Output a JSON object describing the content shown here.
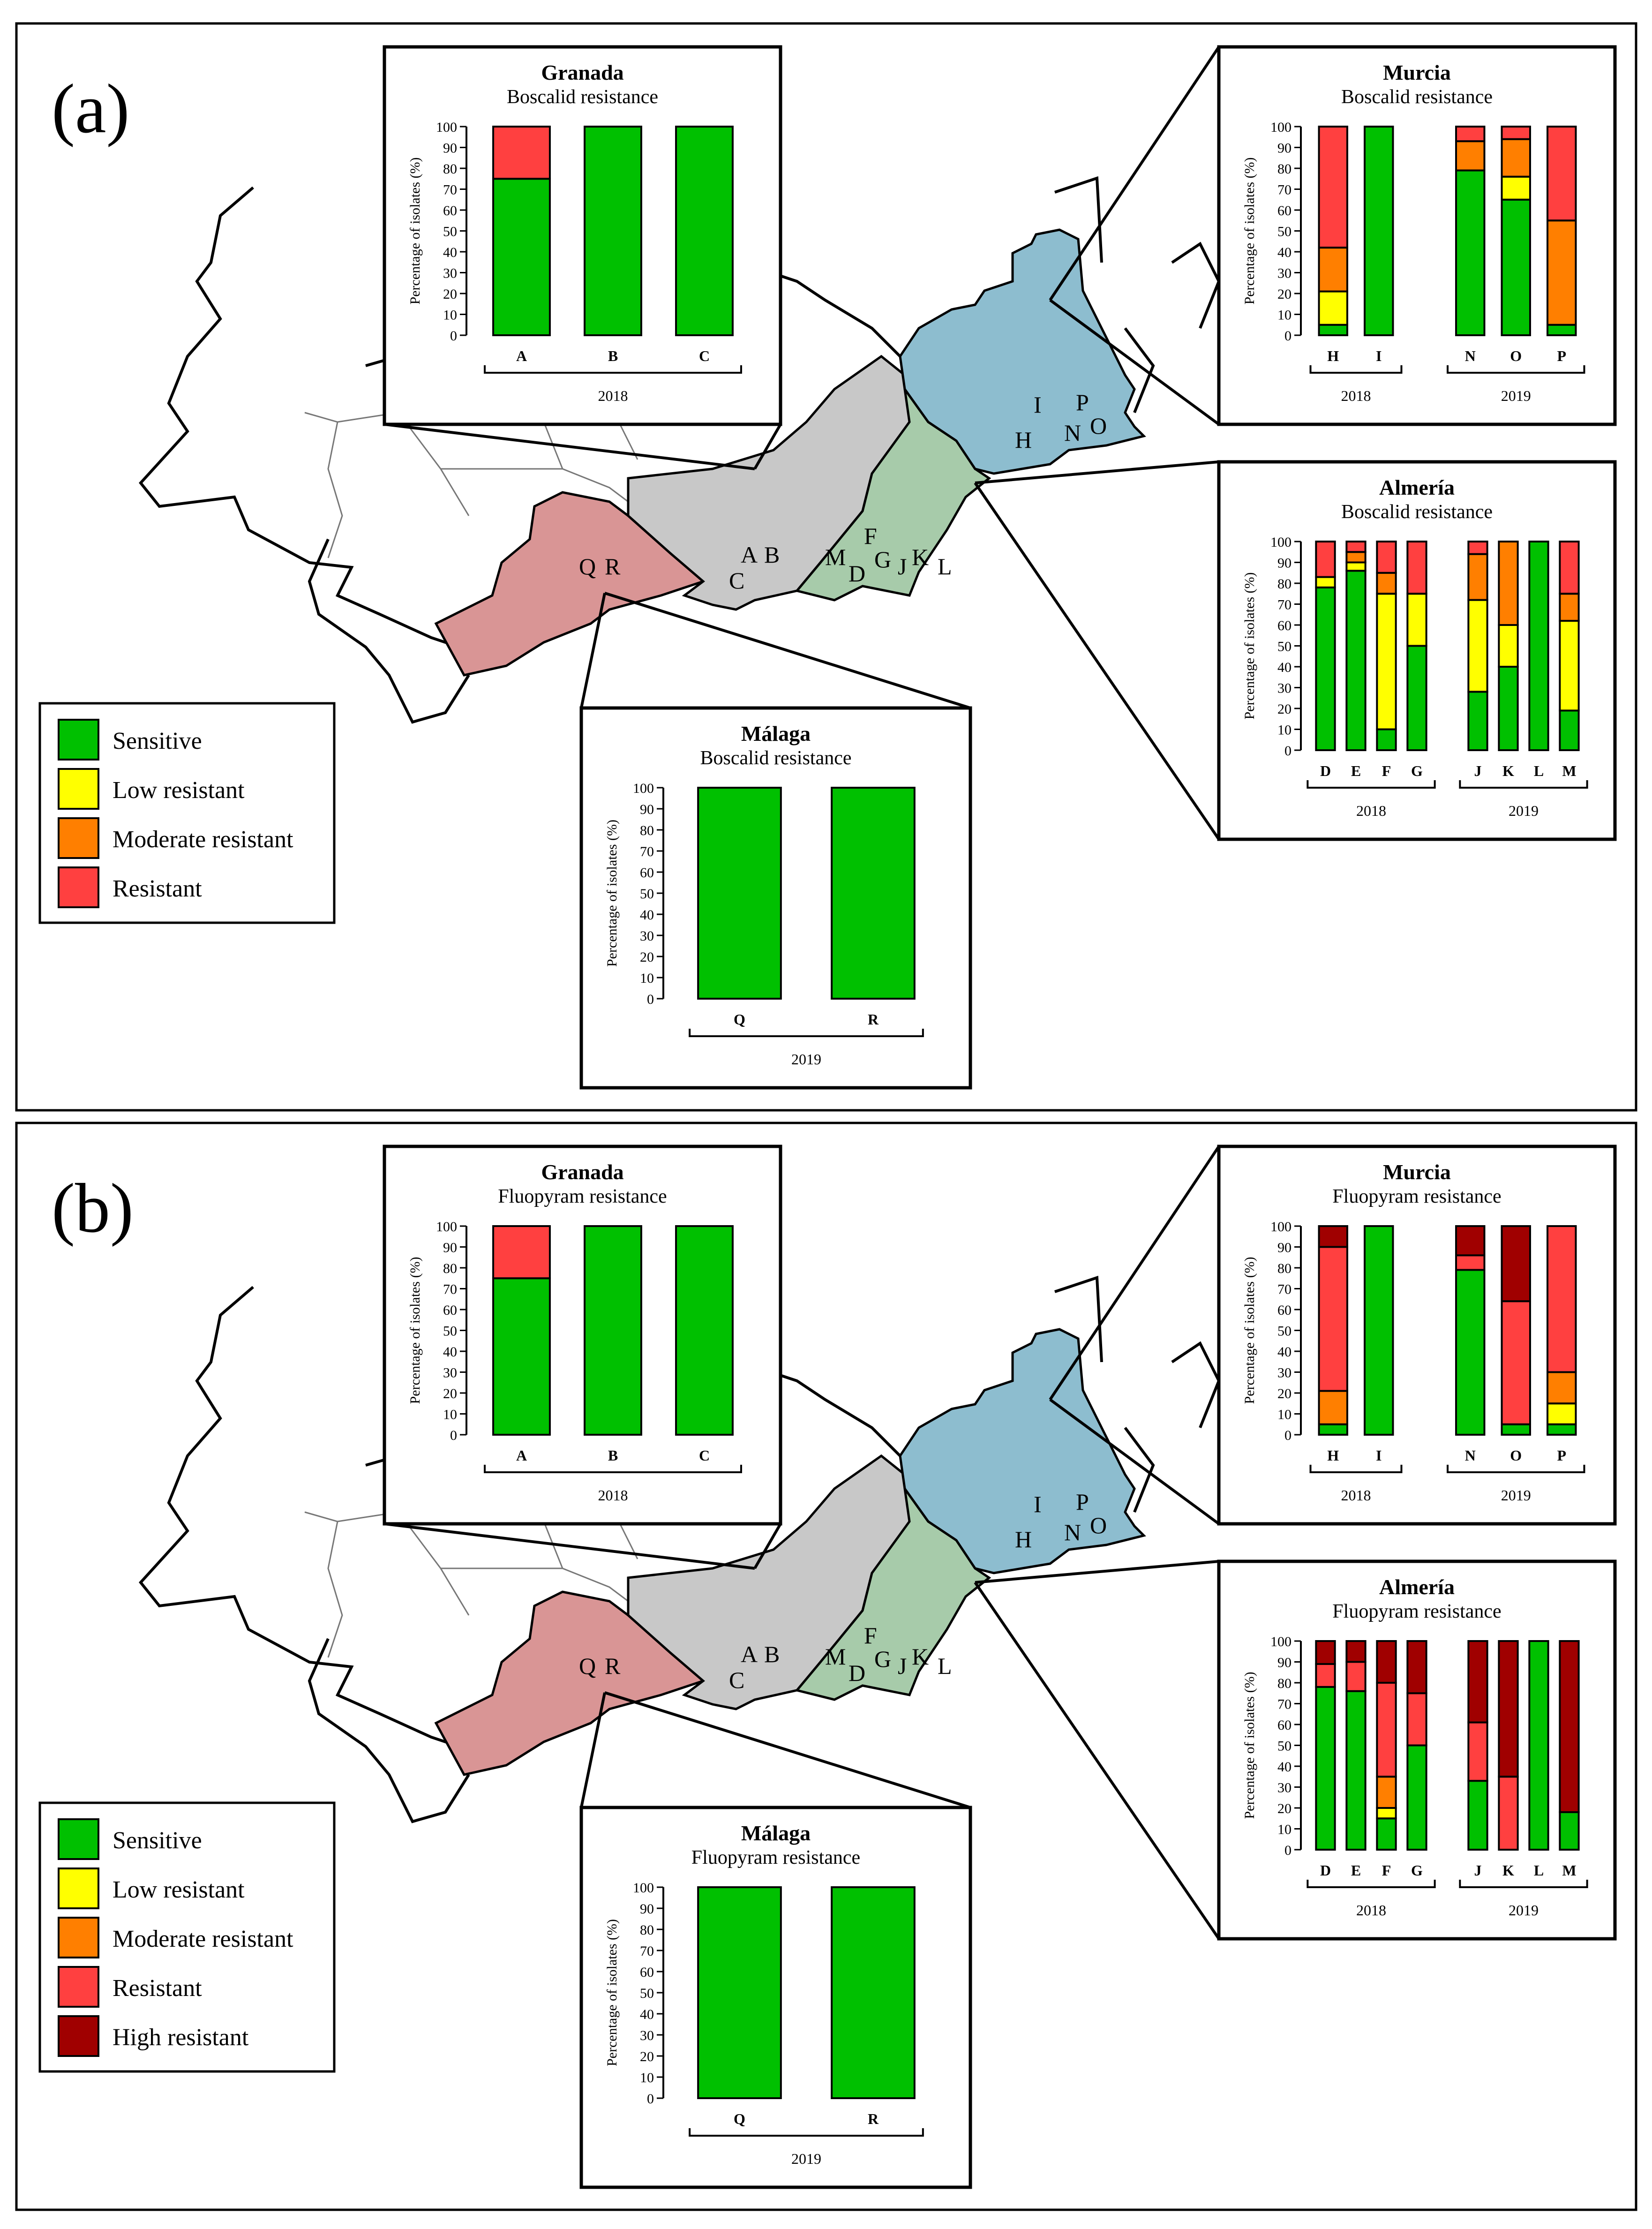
{
  "colors": {
    "sensitive": "#00C000",
    "low": "#FFFF00",
    "moderate": "#FF7F00",
    "resistant": "#FF4040",
    "high": "#A00000",
    "murcia_region": "#8DBDCF",
    "almeria_region": "#A7CBAA",
    "granada_region": "#C8C8C8",
    "malaga_region": "#D99595"
  },
  "legend": {
    "sensitive": "Sensitive",
    "low": "Low resistant",
    "moderate": "Moderate resistant",
    "resistant": "Resistant",
    "high": "High resistant"
  },
  "panels": [
    {
      "label": "(a)",
      "map_labels": {
        "granada": [
          "A",
          "B",
          "C"
        ],
        "malaga": [
          "Q",
          "R"
        ],
        "almeria": [
          "M",
          "F",
          "D",
          "G",
          "J",
          "K",
          "L"
        ],
        "murcia": [
          "I",
          "P",
          "H",
          "N",
          "O"
        ]
      },
      "legend_keys": [
        "sensitive",
        "low",
        "moderate",
        "resistant"
      ]
    },
    {
      "label": "(b)",
      "map_labels": {
        "granada": [
          "A",
          "B",
          "C"
        ],
        "malaga": [
          "Q",
          "R"
        ],
        "almeria": [
          "M",
          "F",
          "D",
          "G",
          "J",
          "K",
          "L"
        ],
        "murcia": [
          "I",
          "P",
          "H",
          "N",
          "O"
        ]
      },
      "legend_keys": [
        "sensitive",
        "low",
        "moderate",
        "resistant",
        "high"
      ]
    }
  ],
  "chart_data": [
    {
      "id": "a-granada",
      "type": "bar",
      "stacked": true,
      "title": "Granada",
      "subtitle": "Boscalid resistance",
      "ylabel": "Percentage of isolates (%)",
      "ylim": [
        0,
        100
      ],
      "yticks": [
        0,
        10,
        20,
        30,
        40,
        50,
        60,
        70,
        80,
        90,
        100
      ],
      "groups": [
        {
          "year": "2018",
          "categories": [
            "A",
            "B",
            "C"
          ]
        }
      ],
      "series": [
        {
          "key": "sensitive",
          "values": [
            75,
            100,
            100
          ]
        },
        {
          "key": "resistant",
          "values": [
            25,
            0,
            0
          ]
        }
      ]
    },
    {
      "id": "a-murcia",
      "type": "bar",
      "stacked": true,
      "title": "Murcia",
      "subtitle": "Boscalid resistance",
      "ylabel": "Percentage of isolates (%)",
      "ylim": [
        0,
        100
      ],
      "yticks": [
        0,
        10,
        20,
        30,
        40,
        50,
        60,
        70,
        80,
        90,
        100
      ],
      "groups": [
        {
          "year": "2018",
          "categories": [
            "H",
            "I"
          ]
        },
        {
          "year": "2019",
          "categories": [
            "N",
            "O",
            "P"
          ]
        }
      ],
      "series": [
        {
          "key": "sensitive",
          "values": [
            5,
            100,
            79,
            65,
            5
          ]
        },
        {
          "key": "low",
          "values": [
            16,
            0,
            0,
            11,
            0
          ]
        },
        {
          "key": "moderate",
          "values": [
            21,
            0,
            14,
            18,
            50
          ]
        },
        {
          "key": "resistant",
          "values": [
            58,
            0,
            7,
            6,
            45
          ]
        }
      ]
    },
    {
      "id": "a-almeria",
      "type": "bar",
      "stacked": true,
      "title": "Almería",
      "subtitle": "Boscalid resistance",
      "ylabel": "Percentage of isolates (%)",
      "ylim": [
        0,
        100
      ],
      "yticks": [
        0,
        10,
        20,
        30,
        40,
        50,
        60,
        70,
        80,
        90,
        100
      ],
      "groups": [
        {
          "year": "2018",
          "categories": [
            "D",
            "E",
            "F",
            "G"
          ]
        },
        {
          "year": "2019",
          "categories": [
            "J",
            "K",
            "L",
            "M"
          ]
        }
      ],
      "series": [
        {
          "key": "sensitive",
          "values": [
            78,
            86,
            10,
            50,
            28,
            40,
            100,
            19
          ]
        },
        {
          "key": "low",
          "values": [
            5,
            4,
            65,
            25,
            44,
            20,
            0,
            43
          ]
        },
        {
          "key": "moderate",
          "values": [
            0,
            5,
            10,
            0,
            22,
            40,
            0,
            13
          ]
        },
        {
          "key": "resistant",
          "values": [
            17,
            5,
            15,
            25,
            6,
            0,
            0,
            25
          ]
        }
      ]
    },
    {
      "id": "a-malaga",
      "type": "bar",
      "stacked": true,
      "title": "Málaga",
      "subtitle": "Boscalid resistance",
      "ylabel": "Percentage of isolates (%)",
      "ylim": [
        0,
        100
      ],
      "yticks": [
        0,
        10,
        20,
        30,
        40,
        50,
        60,
        70,
        80,
        90,
        100
      ],
      "groups": [
        {
          "year": "2019",
          "categories": [
            "Q",
            "R"
          ]
        }
      ],
      "series": [
        {
          "key": "sensitive",
          "values": [
            100,
            100
          ]
        }
      ]
    },
    {
      "id": "b-granada",
      "type": "bar",
      "stacked": true,
      "title": "Granada",
      "subtitle": "Fluopyram resistance",
      "ylabel": "Percentage of isolates (%)",
      "ylim": [
        0,
        100
      ],
      "yticks": [
        0,
        10,
        20,
        30,
        40,
        50,
        60,
        70,
        80,
        90,
        100
      ],
      "groups": [
        {
          "year": "2018",
          "categories": [
            "A",
            "B",
            "C"
          ]
        }
      ],
      "series": [
        {
          "key": "sensitive",
          "values": [
            75,
            100,
            100
          ]
        },
        {
          "key": "resistant",
          "values": [
            25,
            0,
            0
          ]
        }
      ]
    },
    {
      "id": "b-murcia",
      "type": "bar",
      "stacked": true,
      "title": "Murcia",
      "subtitle": "Fluopyram resistance",
      "ylabel": "Percentage of isolates (%)",
      "ylim": [
        0,
        100
      ],
      "yticks": [
        0,
        10,
        20,
        30,
        40,
        50,
        60,
        70,
        80,
        90,
        100
      ],
      "groups": [
        {
          "year": "2018",
          "categories": [
            "H",
            "I"
          ]
        },
        {
          "year": "2019",
          "categories": [
            "N",
            "O",
            "P"
          ]
        }
      ],
      "series": [
        {
          "key": "sensitive",
          "values": [
            5,
            100,
            79,
            5,
            5
          ]
        },
        {
          "key": "low",
          "values": [
            0,
            0,
            0,
            0,
            10
          ]
        },
        {
          "key": "moderate",
          "values": [
            16,
            0,
            0,
            0,
            15
          ]
        },
        {
          "key": "resistant",
          "values": [
            69,
            0,
            7,
            59,
            70
          ]
        },
        {
          "key": "high",
          "values": [
            10,
            0,
            14,
            36,
            0
          ]
        }
      ]
    },
    {
      "id": "b-almeria",
      "type": "bar",
      "stacked": true,
      "title": "Almería",
      "subtitle": "Fluopyram resistance",
      "ylabel": "Percentage of isolates (%)",
      "ylim": [
        0,
        100
      ],
      "yticks": [
        0,
        10,
        20,
        30,
        40,
        50,
        60,
        70,
        80,
        90,
        100
      ],
      "groups": [
        {
          "year": "2018",
          "categories": [
            "D",
            "E",
            "F",
            "G"
          ]
        },
        {
          "year": "2019",
          "categories": [
            "J",
            "K",
            "L",
            "M"
          ]
        }
      ],
      "series": [
        {
          "key": "sensitive",
          "values": [
            78,
            76,
            15,
            50,
            33,
            0,
            100,
            18
          ]
        },
        {
          "key": "low",
          "values": [
            0,
            0,
            5,
            0,
            0,
            0,
            0,
            0
          ]
        },
        {
          "key": "moderate",
          "values": [
            0,
            0,
            15,
            0,
            0,
            0,
            0,
            0
          ]
        },
        {
          "key": "resistant",
          "values": [
            11,
            14,
            45,
            25,
            28,
            35,
            0,
            0
          ]
        },
        {
          "key": "high",
          "values": [
            11,
            10,
            20,
            25,
            39,
            65,
            0,
            82
          ]
        }
      ]
    },
    {
      "id": "b-malaga",
      "type": "bar",
      "stacked": true,
      "title": "Málaga",
      "subtitle": "Fluopyram resistance",
      "ylabel": "Percentage of isolates (%)",
      "ylim": [
        0,
        100
      ],
      "yticks": [
        0,
        10,
        20,
        30,
        40,
        50,
        60,
        70,
        80,
        90,
        100
      ],
      "groups": [
        {
          "year": "2019",
          "categories": [
            "Q",
            "R"
          ]
        }
      ],
      "series": [
        {
          "key": "sensitive",
          "values": [
            100,
            100
          ]
        }
      ]
    }
  ]
}
